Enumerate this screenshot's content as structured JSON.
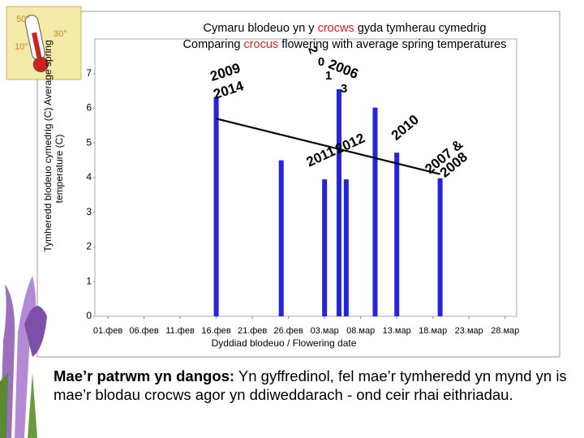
{
  "icon": {
    "labels": [
      "50°",
      "30°",
      "10°"
    ]
  },
  "chart_data": {
    "type": "bar",
    "title": [
      {
        "before": "Cymaru blodeuo yn y",
        "highlight": "crocws",
        "after": "gyda tymherau cymedrig"
      },
      {
        "before": "Comparing",
        "highlight": "crocus",
        "after": "flowering with average spring temperatures"
      }
    ],
    "x_label": "Dyddiad blodeuo / Flowering date",
    "y_label": [
      "Tymheredd blodeuo cymedrig (C) Average spring",
      "temperature (C)"
    ],
    "x": [
      15,
      24,
      30,
      32,
      33,
      37,
      40,
      46
    ],
    "values": [
      6.33,
      4.5,
      3.95,
      6.55,
      3.95,
      6.02,
      4.72,
      3.98
    ],
    "color": "#2222e8",
    "trend": {
      "x": [
        15,
        46
      ],
      "values": [
        5.7,
        4.1
      ],
      "color": "#000000"
    },
    "annotations": [
      "2009",
      "2014",
      "2",
      "0",
      "1",
      "2006",
      "3",
      "2011",
      "2012",
      "2010",
      "2007 &",
      "2008"
    ],
    "xlim": [
      -1.8,
      56.6
    ],
    "ylim": [
      0,
      8
    ],
    "yticks": [
      0,
      1,
      2,
      3,
      4,
      5,
      6,
      7
    ],
    "xticks": [
      {
        "value": 0,
        "label": "01.фев"
      },
      {
        "value": 5,
        "label": "06.фев"
      },
      {
        "value": 10,
        "label": "11.фев"
      },
      {
        "value": 15,
        "label": "16.фев"
      },
      {
        "value": 20,
        "label": "21.фев"
      },
      {
        "value": 25,
        "label": "26.фев"
      },
      {
        "value": 30,
        "label": "03.мар"
      },
      {
        "value": 35,
        "label": "08.мар"
      },
      {
        "value": 40,
        "label": "13.мар"
      },
      {
        "value": 45,
        "label": "18.мар"
      },
      {
        "value": 50,
        "label": "23.мар"
      },
      {
        "value": 55,
        "label": "28.мар"
      }
    ]
  },
  "caption": {
    "bold": "Mae’r patrwm yn dangos:",
    "text": "Yn gyffredinol, fel mae’r tymheredd yn mynd yn is mae’r blodau crocws agor yn ddiweddarach - ond ceir rhai eithriadau."
  }
}
